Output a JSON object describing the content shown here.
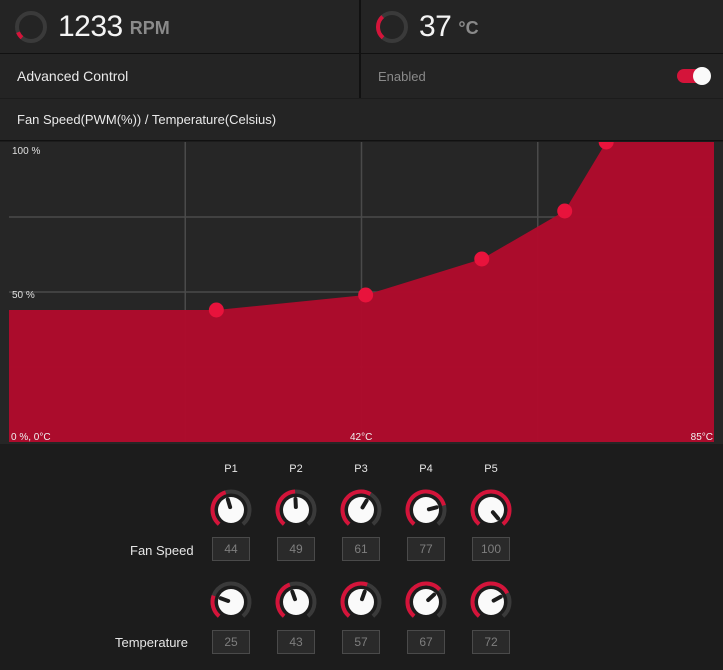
{
  "status": {
    "fan": {
      "value": "1233",
      "unit": "RPM",
      "level": 0.1
    },
    "temp": {
      "value": "37",
      "unit": "°C",
      "level": 0.35
    }
  },
  "advanced": {
    "label": "Advanced Control",
    "state_label": "Enabled",
    "enabled": true
  },
  "chart_title": "Fan Speed(PWM(%)) / Temperature(Celsius)",
  "chart_data": {
    "type": "area",
    "x": [
      0,
      25,
      43,
      57,
      67,
      72,
      85
    ],
    "values": [
      44,
      44,
      49,
      61,
      77,
      100,
      100
    ],
    "points": [
      {
        "name": "P1",
        "x": 25,
        "y": 44
      },
      {
        "name": "P2",
        "x": 43,
        "y": 49
      },
      {
        "name": "P3",
        "x": 57,
        "y": 61
      },
      {
        "name": "P4",
        "x": 67,
        "y": 77
      },
      {
        "name": "P5",
        "x": 72,
        "y": 100
      }
    ],
    "xlim": [
      0,
      85
    ],
    "ylim": [
      0,
      100
    ],
    "tick_labels": {
      "y_top": "100 %",
      "y_mid": "50 %",
      "origin": "0 %, 0°C",
      "x_mid": "42°C",
      "x_max": "85°C"
    },
    "grid": true,
    "fill_color": "#b00b2c",
    "point_color": "#e8133c"
  },
  "controls": {
    "columns": [
      "P1",
      "P2",
      "P3",
      "P4",
      "P5"
    ],
    "fan_label": "Fan Speed",
    "temp_label": "Temperature",
    "fan_values": [
      44,
      49,
      61,
      77,
      100
    ],
    "temp_values": [
      25,
      43,
      57,
      67,
      72
    ],
    "accent": "#d4143a"
  }
}
